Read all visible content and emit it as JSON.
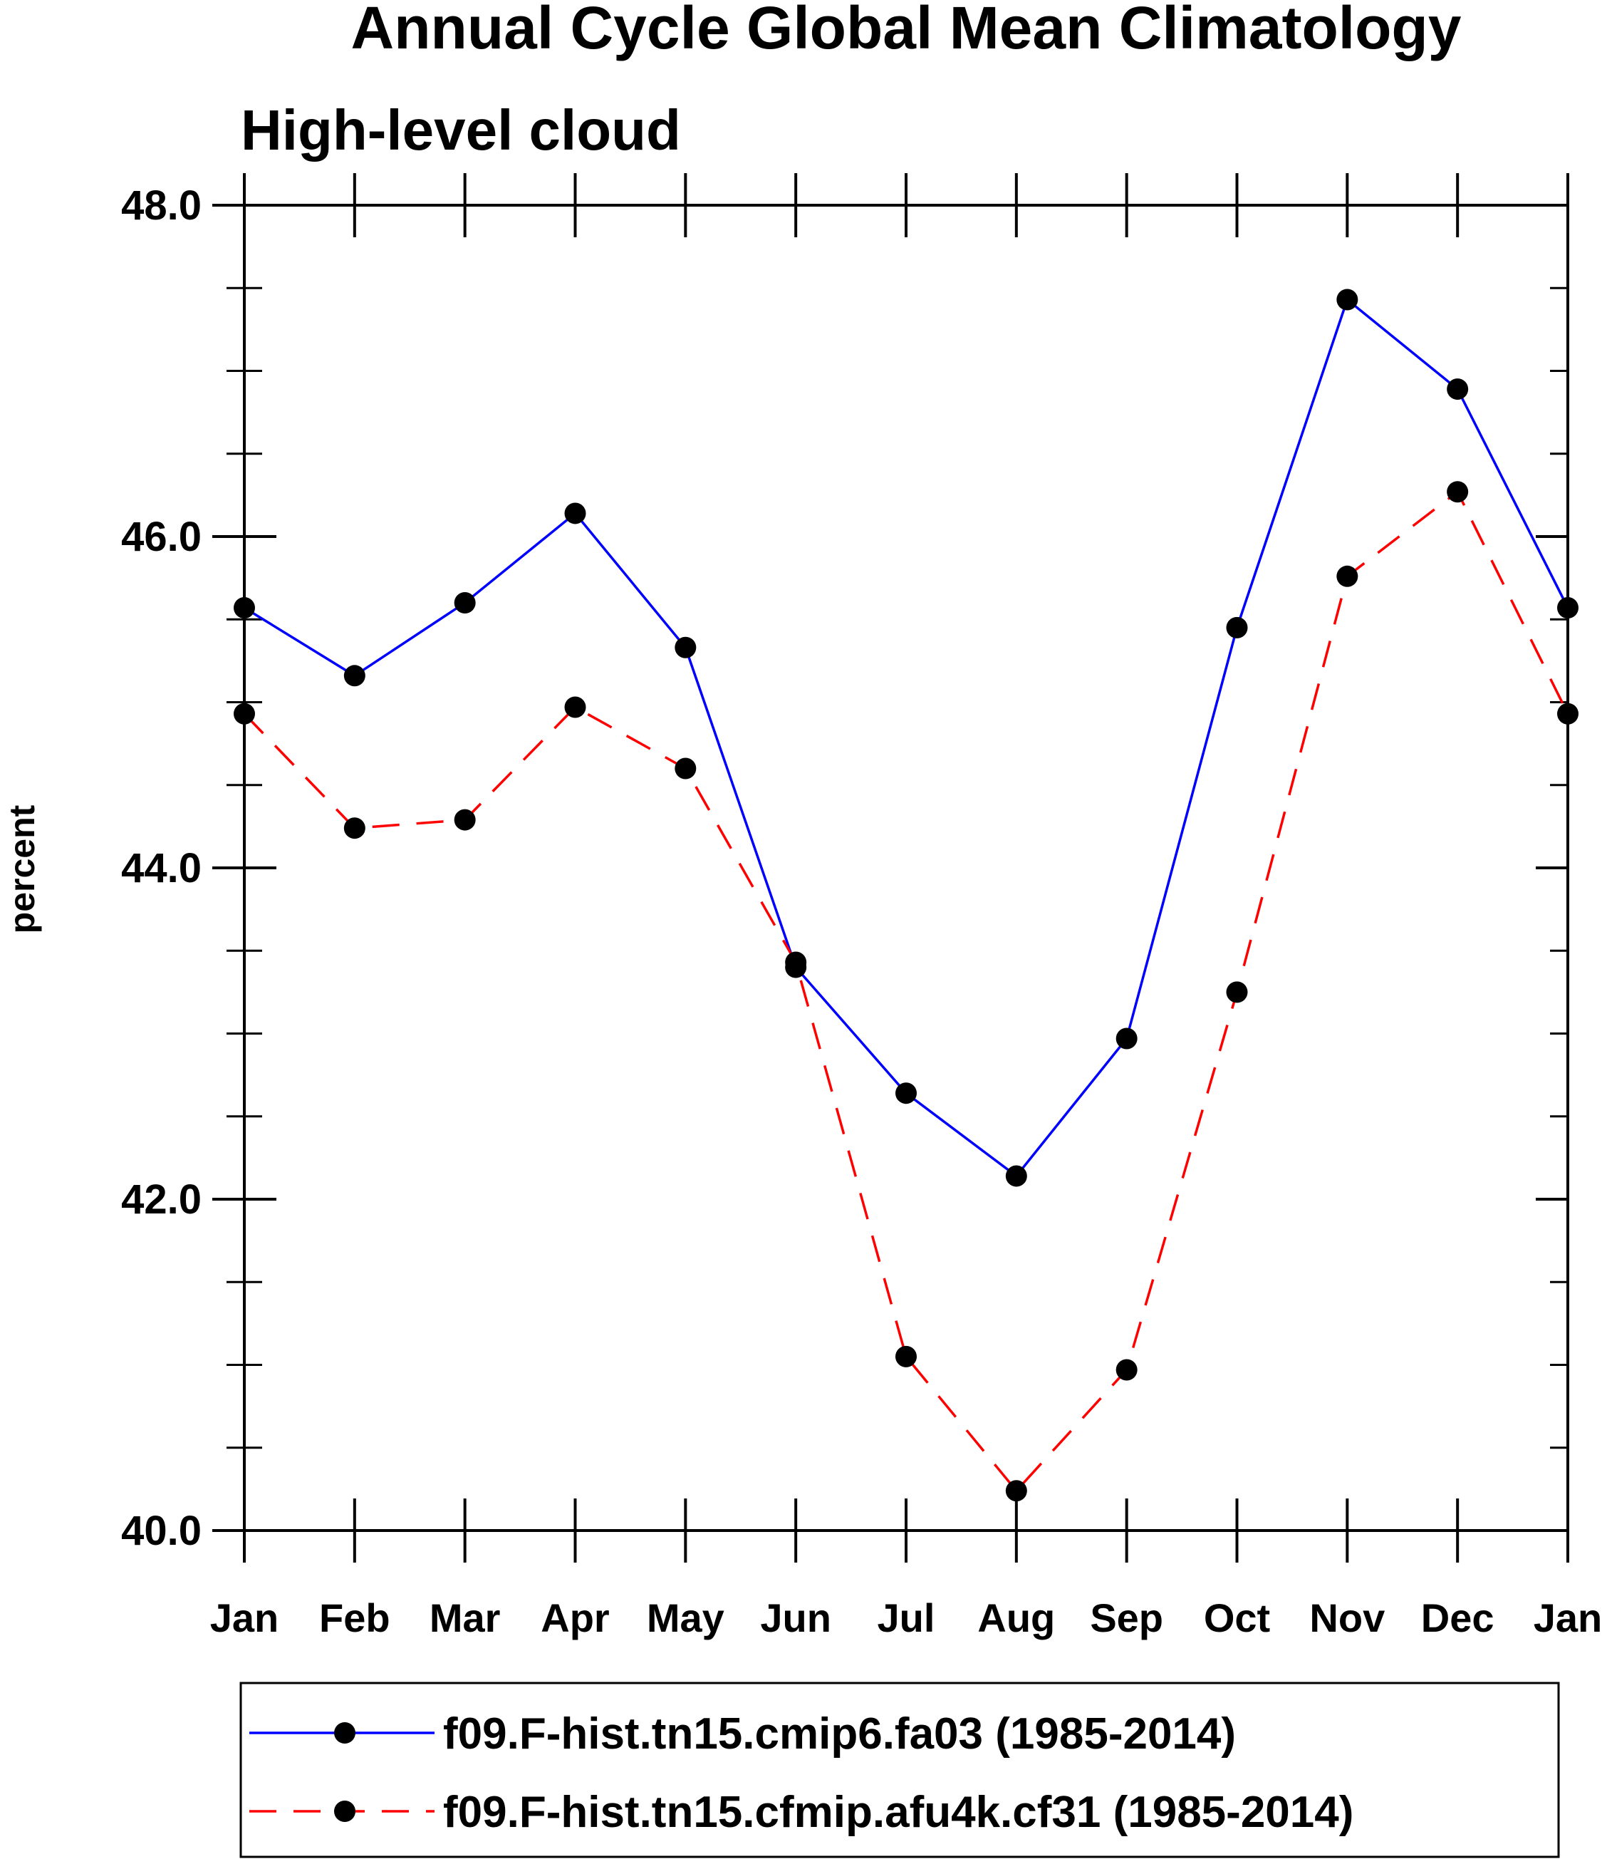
{
  "chart_data": {
    "type": "line",
    "title": "Annual Cycle Global Mean Climatology",
    "subtitle": "High-level cloud",
    "ylabel": "percent",
    "xlabel": "",
    "ylim": [
      40.0,
      48.0
    ],
    "y_major_ticks": [
      "40.0",
      "42.0",
      "44.0",
      "46.0",
      "48.0"
    ],
    "y_minor_step": 0.5,
    "categories": [
      "Jan",
      "Feb",
      "Mar",
      "Apr",
      "May",
      "Jun",
      "Jul",
      "Aug",
      "Sep",
      "Oct",
      "Nov",
      "Dec",
      "Jan"
    ],
    "series": [
      {
        "name": "f09.F-hist.tn15.cmip6.fa03 (1985-2014)",
        "color": "#0000ff",
        "dash": "solid",
        "values": [
          45.57,
          45.16,
          45.6,
          46.14,
          45.33,
          43.4,
          42.64,
          42.14,
          42.97,
          45.45,
          47.43,
          46.89,
          45.57
        ]
      },
      {
        "name": "f09.F-hist.tn15.cfmip.afu4k.cf31 (1985-2014)",
        "color": "#ff0000",
        "dash": "dashed",
        "values": [
          44.93,
          44.24,
          44.29,
          44.97,
          44.6,
          43.43,
          41.05,
          40.24,
          40.97,
          43.25,
          45.76,
          46.27,
          44.93
        ]
      }
    ],
    "marker_color": "#000000",
    "legend_position": "bottom"
  }
}
